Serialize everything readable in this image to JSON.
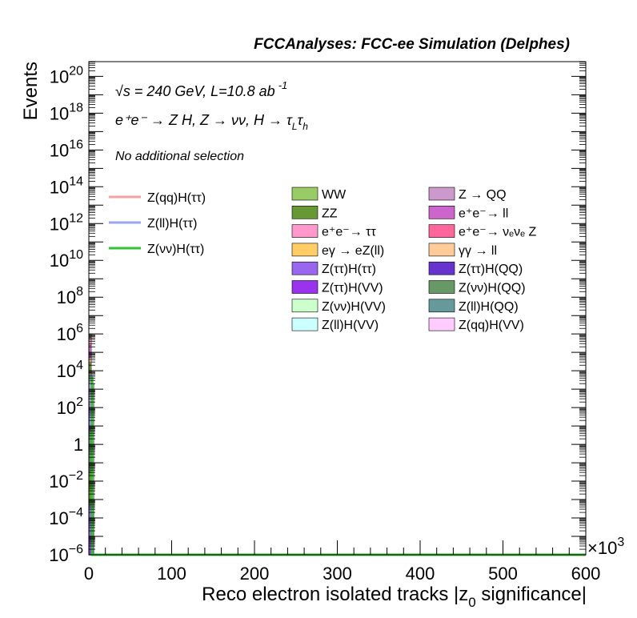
{
  "chart_data": {
    "type": "bar",
    "title": "FCCAnalyses: FCC-ee Simulation (Delphes)",
    "xlabel": "Reco electron isolated tracks |z",
    "xlabel_sub": "0",
    "xlabel_tail": " significance|",
    "ylabel": "Events",
    "x_multiplier": "×10",
    "x_multiplier_exp": "3",
    "xlim": [
      0,
      600
    ],
    "ylim_log10": [
      -6,
      20.8
    ],
    "log_y": true,
    "grid": false,
    "legend_position": "top-right",
    "x_ticks": [
      {
        "value": 0,
        "label": "0"
      },
      {
        "value": 100,
        "label": "100"
      },
      {
        "value": 200,
        "label": "200"
      },
      {
        "value": 300,
        "label": "300"
      },
      {
        "value": 400,
        "label": "400"
      },
      {
        "value": 500,
        "label": "500"
      },
      {
        "value": 600,
        "label": "600"
      }
    ],
    "y_ticks": [
      {
        "exp": 20,
        "base": "10",
        "sup": "20"
      },
      {
        "exp": 18,
        "base": "10",
        "sup": "18"
      },
      {
        "exp": 16,
        "base": "10",
        "sup": "16"
      },
      {
        "exp": 14,
        "base": "10",
        "sup": "14"
      },
      {
        "exp": 12,
        "base": "10",
        "sup": "12"
      },
      {
        "exp": 10,
        "base": "10",
        "sup": "10"
      },
      {
        "exp": 8,
        "base": "10",
        "sup": "8"
      },
      {
        "exp": 6,
        "base": "10",
        "sup": "6"
      },
      {
        "exp": 4,
        "base": "10",
        "sup": "4"
      },
      {
        "exp": 2,
        "base": "10",
        "sup": "2"
      },
      {
        "exp": 0,
        "base": "1",
        "sup": ""
      },
      {
        "exp": -2,
        "base": "10",
        "sup": "−2"
      },
      {
        "exp": -4,
        "base": "10",
        "sup": "−4"
      },
      {
        "exp": -6,
        "base": "10",
        "sup": "−6"
      }
    ],
    "info": {
      "energy_lumi": "√s = 240 GeV, L=10.8 ab",
      "lumi_exp": "-1",
      "process": "e⁺e⁻ → Z H, Z → νν, H → τ",
      "process_tau1_sub": "L",
      "process_tau2": "τ",
      "process_tau2_sub": "h",
      "selection": "No additional selection"
    },
    "stack_bins": [
      {
        "x0": 0,
        "x1": 3,
        "segments": [
          {
            "series": "Z(ll)H(QQ)",
            "log10_top": -6.0
          },
          {
            "series": "Z(ττ)H(VV)",
            "log10_top": -5.0
          },
          {
            "series": "Z(ττ)H(ττ)",
            "log10_top": -3.3
          },
          {
            "series": "ZZ",
            "log10_top": -1.5
          },
          {
            "series": "Z(νν)H(QQ)",
            "log10_top": 0.8
          },
          {
            "series": "Z(ττ)H(ττ)",
            "log10_top": 2.2
          },
          {
            "series": "Z → QQ",
            "log10_top": 3.4
          },
          {
            "series": "eγ → eZ(ll)",
            "log10_top": 3.9
          },
          {
            "series": "ZZ",
            "log10_top": 4.4
          },
          {
            "series": "γγ → ll",
            "log10_top": 4.7
          },
          {
            "series": "e⁺e⁻ → ll",
            "log10_top": 5.4
          },
          {
            "series": "e⁺e⁻ → ττ",
            "log10_top": 5.8
          },
          {
            "series": "WW",
            "log10_top": 6.0
          }
        ]
      },
      {
        "x0": 3,
        "x1": 6,
        "segments": [
          {
            "series": "Z(ττ)H(VV)",
            "log10_top": -5.2
          },
          {
            "series": "ZZ",
            "log10_top": -3.0
          },
          {
            "series": "e⁺e⁻ → ττ",
            "log10_top": 3.0
          },
          {
            "series": "WW",
            "log10_top": 3.3
          }
        ]
      }
    ],
    "line_series": [
      {
        "name": "Z(qq)H(ττ)",
        "color": "#f4a3a3",
        "points": [
          [
            0,
            3.5
          ],
          [
            3,
            3.5
          ],
          [
            3,
            1.0
          ],
          [
            6,
            1.0
          ]
        ]
      },
      {
        "name": "Z(ll)H(ττ)",
        "color": "#9ca4f4",
        "points": [
          [
            0,
            3.7
          ],
          [
            3,
            3.7
          ],
          [
            3,
            1.0
          ],
          [
            6,
            1.0
          ]
        ]
      },
      {
        "name": "Z(νν)H(ττ)",
        "color": "#33c233",
        "points": [
          [
            0,
            3.6
          ],
          [
            4,
            3.6
          ],
          [
            4,
            -6
          ],
          [
            600,
            -6
          ]
        ]
      }
    ],
    "legend_lines": [
      {
        "label": "Z(qq)H(ττ)",
        "color": "#f4a3a3"
      },
      {
        "label": "Z(ll)H(ττ)",
        "color": "#9ca4f4"
      },
      {
        "label": "Z(νν)H(ττ)",
        "color": "#33c233"
      }
    ],
    "legend_fills": [
      {
        "label": "WW",
        "color": "#99cc66"
      },
      {
        "label": "Z → QQ",
        "color": "#cc99cc"
      },
      {
        "label": "ZZ",
        "color": "#669933"
      },
      {
        "label": "e⁺e⁻→ ll",
        "color": "#cc66cc"
      },
      {
        "label": "e⁺e⁻→ ττ",
        "color": "#ff99cc"
      },
      {
        "label": "e⁺e⁻→ νₑνₑ Z",
        "color": "#ff6699"
      },
      {
        "label": "eγ → eZ(ll)",
        "color": "#ffcc66"
      },
      {
        "label": "γγ → ll",
        "color": "#ffcc99"
      },
      {
        "label": "Z(ττ)H(ττ)",
        "color": "#9966ee"
      },
      {
        "label": "Z(ττ)H(QQ)",
        "color": "#6633cc"
      },
      {
        "label": "Z(ττ)H(VV)",
        "color": "#9933ee"
      },
      {
        "label": "Z(νν)H(QQ)",
        "color": "#669966"
      },
      {
        "label": "Z(νν)H(VV)",
        "color": "#ccffcc"
      },
      {
        "label": "Z(ll)H(QQ)",
        "color": "#669999"
      },
      {
        "label": "Z(ll)H(VV)",
        "color": "#ccffff"
      },
      {
        "label": "Z(qq)H(VV)",
        "color": "#ffccff"
      }
    ]
  }
}
